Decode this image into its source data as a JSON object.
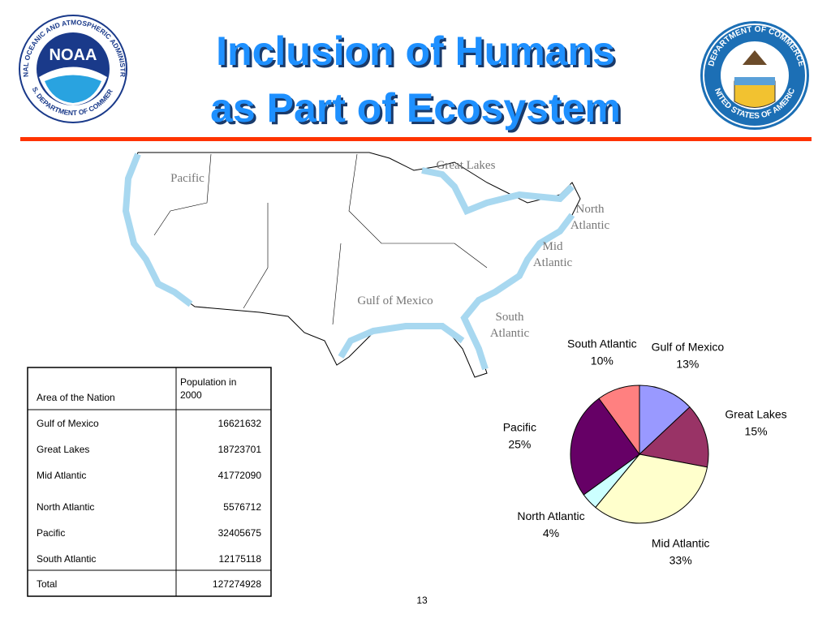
{
  "title": [
    "Inclusion of Humans",
    "as Part of Ecosystem"
  ],
  "logos": {
    "left": {
      "center": "NOAA",
      "ring_top": "NATIONAL OCEANIC AND ATMOSPHERIC ADMINISTRATION",
      "ring_bottom": "U.S. DEPARTMENT OF COMMERCE"
    },
    "right": {
      "ring_top": "DEPARTMENT OF COMMERCE",
      "ring_bottom": "UNITED STATES OF AMERICA"
    }
  },
  "map": {
    "labels": [
      "Pacific",
      "Great Lakes",
      "North Atlantic",
      "Mid Atlantic",
      "Gulf of Mexico",
      "South Atlantic"
    ]
  },
  "table": {
    "header": [
      "Area of the Nation",
      "Population in 2000"
    ],
    "rows": [
      [
        "Gulf of Mexico",
        16621632
      ],
      [
        "Great Lakes",
        18723701
      ],
      [
        "Mid Atlantic",
        41772090
      ],
      [
        "North Atlantic",
        5576712
      ],
      [
        "Pacific",
        32405675
      ],
      [
        "South Atlantic",
        12175118
      ]
    ],
    "total": [
      "Total",
      127274928
    ]
  },
  "chart_data": {
    "type": "pie",
    "categories": [
      "Gulf of Mexico",
      "Great Lakes",
      "Mid Atlantic",
      "North Atlantic",
      "Pacific",
      "South Atlantic"
    ],
    "values": [
      13,
      15,
      33,
      4,
      25,
      10
    ],
    "value_labels": [
      "13%",
      "15%",
      "33%",
      "4%",
      "25%",
      "10%"
    ],
    "colors": [
      "#9999ff",
      "#993366",
      "#ffffcc",
      "#ccffff",
      "#660066",
      "#ff8080"
    ]
  },
  "page_number": 13
}
